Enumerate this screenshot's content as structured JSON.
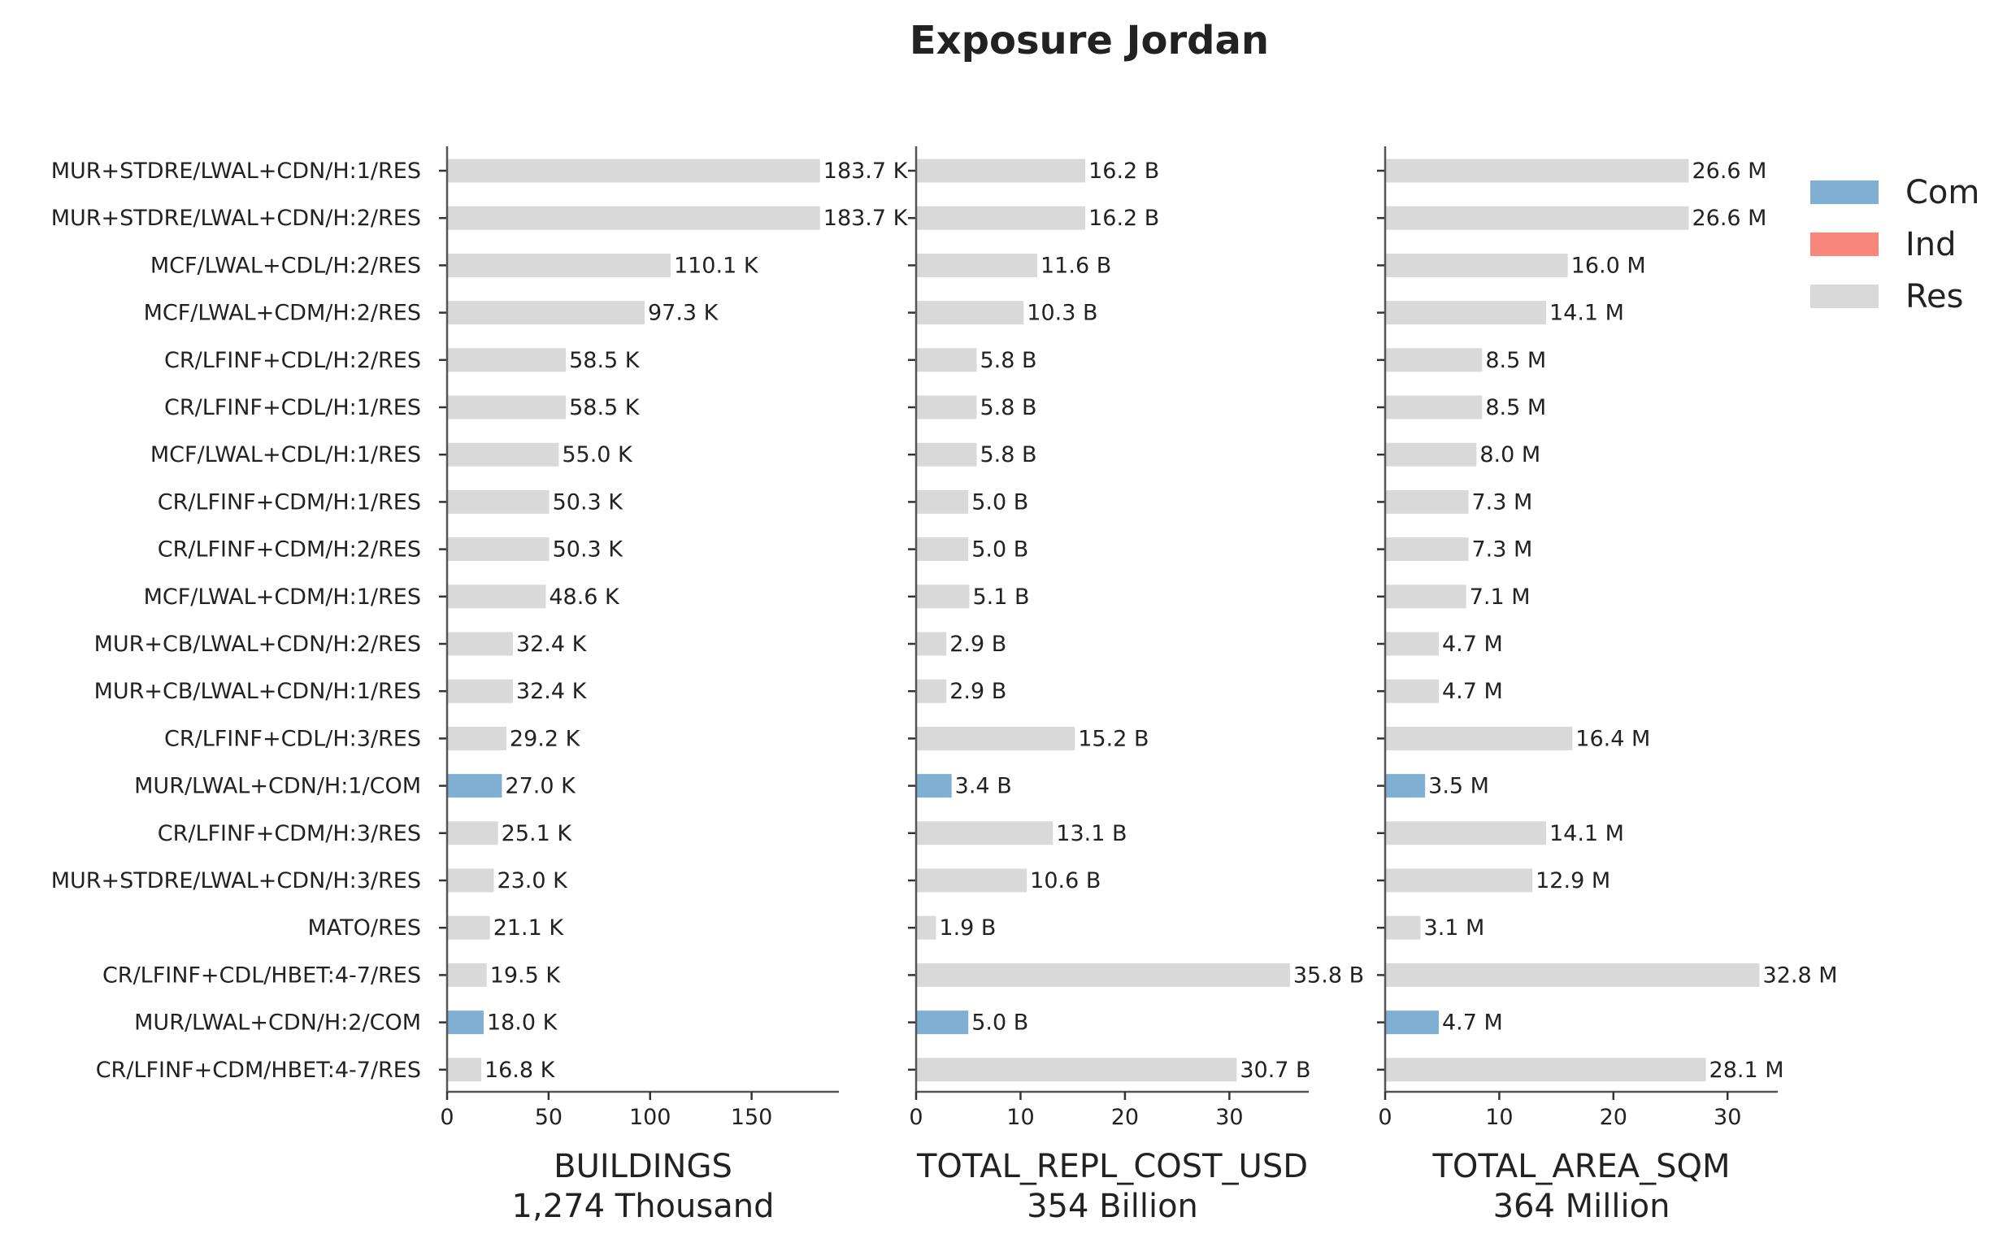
{
  "chart_data": {
    "type": "bar",
    "orientation": "horizontal",
    "title": "Exposure Jordan",
    "categories": [
      "MUR+STDRE/LWAL+CDN/H:1/RES",
      "MUR+STDRE/LWAL+CDN/H:2/RES",
      "MCF/LWAL+CDL/H:2/RES",
      "MCF/LWAL+CDM/H:2/RES",
      "CR/LFINF+CDL/H:2/RES",
      "CR/LFINF+CDL/H:1/RES",
      "MCF/LWAL+CDL/H:1/RES",
      "CR/LFINF+CDM/H:1/RES",
      "CR/LFINF+CDM/H:2/RES",
      "MCF/LWAL+CDM/H:1/RES",
      "MUR+CB/LWAL+CDN/H:2/RES",
      "MUR+CB/LWAL+CDN/H:1/RES",
      "CR/LFINF+CDL/H:3/RES",
      "MUR/LWAL+CDN/H:1/COM",
      "CR/LFINF+CDM/H:3/RES",
      "MUR+STDRE/LWAL+CDN/H:3/RES",
      "MATO/RES",
      "CR/LFINF+CDL/HBET:4-7/RES",
      "MUR/LWAL+CDN/H:2/COM",
      "CR/LFINF+CDM/HBET:4-7/RES"
    ],
    "occupancy": [
      "Res",
      "Res",
      "Res",
      "Res",
      "Res",
      "Res",
      "Res",
      "Res",
      "Res",
      "Res",
      "Res",
      "Res",
      "Res",
      "Com",
      "Res",
      "Res",
      "Res",
      "Res",
      "Com",
      "Res"
    ],
    "legend": {
      "placement": "top-right",
      "entries": [
        {
          "name": "Com",
          "color": "#7fb0d4"
        },
        {
          "name": "Ind",
          "color": "#f8867a"
        },
        {
          "name": "Res",
          "color": "#d9d9d9"
        }
      ]
    },
    "panels": [
      {
        "xlabel": "BUILDINGS",
        "total": "1,274 Thousand",
        "xlim": [
          0,
          193
        ],
        "xticks": [
          0,
          50,
          100,
          150
        ],
        "values": [
          183.7,
          183.7,
          110.1,
          97.3,
          58.5,
          58.5,
          55.0,
          50.3,
          50.3,
          48.6,
          32.4,
          32.4,
          29.2,
          27.0,
          25.1,
          23.0,
          21.1,
          19.5,
          18.0,
          16.8
        ],
        "labels": [
          "183.7 K",
          "183.7 K",
          "110.1 K",
          "97.3 K",
          "58.5 K",
          "58.5 K",
          "55.0 K",
          "50.3 K",
          "50.3 K",
          "48.6 K",
          "32.4 K",
          "32.4 K",
          "29.2 K",
          "27.0 K",
          "25.1 K",
          "23.0 K",
          "21.1 K",
          "19.5 K",
          "18.0 K",
          "16.8 K"
        ]
      },
      {
        "xlabel": "TOTAL_REPL_COST_USD",
        "total": "354 Billion",
        "xlim": [
          0,
          37.6
        ],
        "xticks": [
          0,
          10,
          20,
          30
        ],
        "values": [
          16.2,
          16.2,
          11.6,
          10.3,
          5.8,
          5.8,
          5.8,
          5.0,
          5.0,
          5.1,
          2.9,
          2.9,
          15.2,
          3.4,
          13.1,
          10.6,
          1.9,
          35.8,
          5.0,
          30.7
        ],
        "labels": [
          "16.2 B",
          "16.2 B",
          "11.6 B",
          "10.3 B",
          "5.8 B",
          "5.8 B",
          "5.8 B",
          "5.0 B",
          "5.0 B",
          "5.1 B",
          "2.9 B",
          "2.9 B",
          "15.2 B",
          "3.4 B",
          "13.1 B",
          "10.6 B",
          "1.9 B",
          "35.8 B",
          "5.0 B",
          "30.7 B"
        ]
      },
      {
        "xlabel": "TOTAL_AREA_SQM",
        "total": "364 Million",
        "xlim": [
          0,
          34.4
        ],
        "xticks": [
          0,
          10,
          20,
          30
        ],
        "values": [
          26.6,
          26.6,
          16.0,
          14.1,
          8.5,
          8.5,
          8.0,
          7.3,
          7.3,
          7.1,
          4.7,
          4.7,
          16.4,
          3.5,
          14.1,
          12.9,
          3.1,
          32.8,
          4.7,
          28.1
        ],
        "labels": [
          "26.6 M",
          "26.6 M",
          "16.0 M",
          "14.1 M",
          "8.5 M",
          "8.5 M",
          "8.0 M",
          "7.3 M",
          "7.3 M",
          "7.1 M",
          "4.7 M",
          "4.7 M",
          "16.4 M",
          "3.5 M",
          "14.1 M",
          "12.9 M",
          "3.1 M",
          "32.8 M",
          "4.7 M",
          "28.1 M"
        ]
      }
    ]
  }
}
